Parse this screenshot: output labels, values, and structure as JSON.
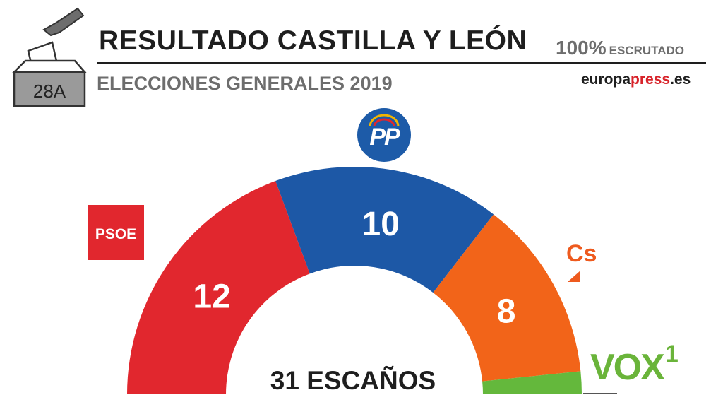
{
  "header": {
    "title": "RESULTADO CASTILLA Y LEÓN",
    "subtitle": "ELECCIONES GENERALES 2019",
    "scrutiny_pct": "100%",
    "scrutiny_label": "ESCRUTADO",
    "source_part1": "europa",
    "source_part2": "press",
    "source_part3": ".es",
    "badge": "28A"
  },
  "chart_data": {
    "type": "parliament-semicircle",
    "title": "RESULTADO CASTILLA Y LEÓN",
    "total_label": "31 ESCAÑOS",
    "total_seats": 31,
    "series": [
      {
        "name": "PSOE",
        "seats": 12,
        "label": "12",
        "color": "#e1272e"
      },
      {
        "name": "PP",
        "seats": 10,
        "label": "10",
        "color": "#1d58a6"
      },
      {
        "name": "Cs",
        "seats": 8,
        "label": "8",
        "color": "#f26419"
      },
      {
        "name": "VOX",
        "seats": 1,
        "label": "",
        "color": "#64b83c"
      }
    ]
  },
  "logos": {
    "psoe": "PSOE",
    "pp": "PP",
    "cs": "Cs",
    "vox": "VOX",
    "vox_seats": "1"
  }
}
